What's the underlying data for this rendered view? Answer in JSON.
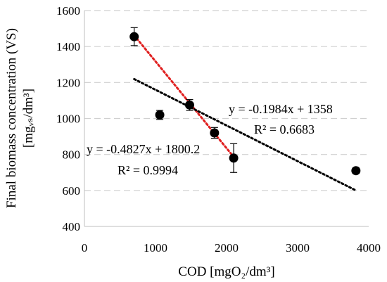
{
  "chart_data": {
    "type": "scatter",
    "xlabel": "COD [mgO₂/dm³]",
    "ylabel_main": "Final biomass concentration (VS)",
    "ylabel_unit": "[mgᵥₛ/dm³]",
    "xlim": [
      0,
      4000
    ],
    "ylim": [
      400,
      1600
    ],
    "x_ticks": [
      0,
      1000,
      2000,
      3000,
      4000
    ],
    "y_ticks": [
      400,
      600,
      800,
      1000,
      1200,
      1400,
      1600
    ],
    "grid": "horizontal-dashed",
    "points": [
      {
        "x": 700,
        "y": 1455,
        "err": 50
      },
      {
        "x": 1060,
        "y": 1020,
        "err": 25
      },
      {
        "x": 1480,
        "y": 1075,
        "err": 30
      },
      {
        "x": 1830,
        "y": 920,
        "err": 30
      },
      {
        "x": 2100,
        "y": 780,
        "err": 80
      },
      {
        "x": 3820,
        "y": 710,
        "err": 15
      }
    ],
    "trendlines": [
      {
        "color": "#e02020",
        "slope": -0.4827,
        "intercept": 1800.2,
        "x_range": [
          700,
          2100
        ],
        "equation": "y = -0.4827x + 1800.2",
        "r2": "R² = 0.9994"
      },
      {
        "color": "#000000",
        "slope": -0.1984,
        "intercept": 1358,
        "x_range": [
          700,
          3820
        ],
        "equation": "y = -0.1984x + 1358",
        "r2": "R² = 0.6683"
      }
    ]
  }
}
